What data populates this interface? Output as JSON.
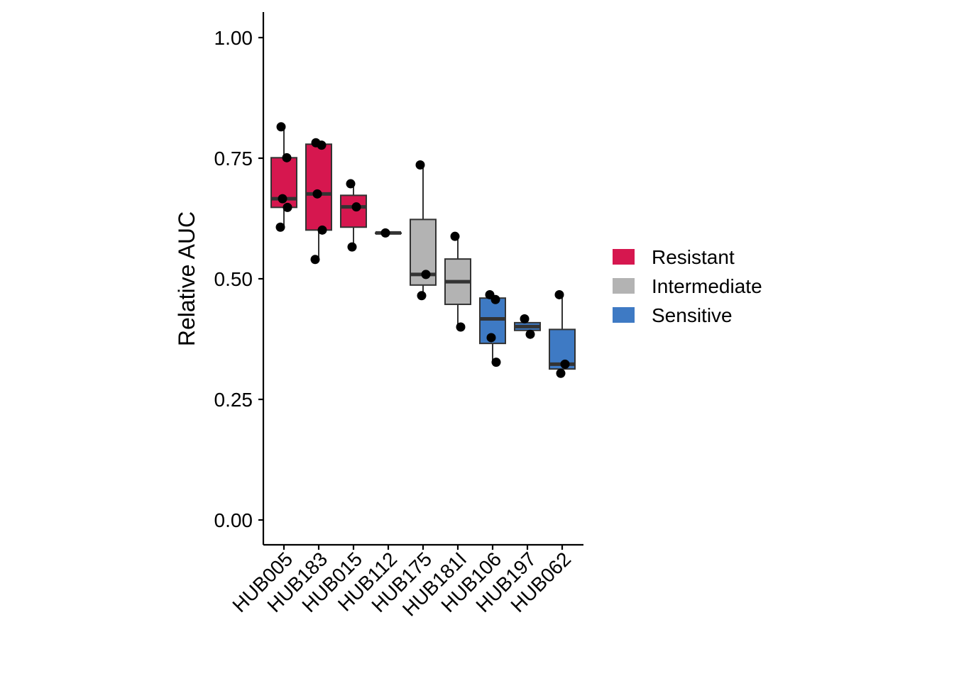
{
  "chart_data": {
    "type": "box",
    "xlabel": "",
    "ylabel": "Relative AUC",
    "ylim": [
      -0.05,
      1.05
    ],
    "yticks": [
      0.0,
      0.25,
      0.5,
      0.75,
      1.0
    ],
    "ytick_labels": [
      "0.00",
      "0.25",
      "0.50",
      "0.75",
      "1.00"
    ],
    "legend_position": "right",
    "groups": [
      {
        "name": "Resistant",
        "color": "#D6174F"
      },
      {
        "name": "Intermediate",
        "color": "#B3B3B3"
      },
      {
        "name": "Sensitive",
        "color": "#3E7AC4"
      }
    ],
    "categories": [
      "HUB005",
      "HUB183",
      "HUB015",
      "HUB112",
      "HUB175",
      "HUB181I",
      "HUB106",
      "HUB197",
      "HUB062"
    ],
    "boxes": [
      {
        "category": "HUB005",
        "group": "Resistant",
        "min": 0.607,
        "q1": 0.648,
        "median": 0.666,
        "q3": 0.751,
        "max": 0.815,
        "points": [
          0.815,
          0.751,
          0.666,
          0.648,
          0.607
        ]
      },
      {
        "category": "HUB183",
        "group": "Resistant",
        "min": 0.54,
        "q1": 0.601,
        "median": 0.676,
        "q3": 0.779,
        "max": 0.782,
        "points": [
          0.782,
          0.777,
          0.676,
          0.601,
          0.54
        ]
      },
      {
        "category": "HUB015",
        "group": "Resistant",
        "min": 0.566,
        "q1": 0.607,
        "median": 0.649,
        "q3": 0.673,
        "max": 0.697,
        "points": [
          0.697,
          0.649,
          0.566
        ]
      },
      {
        "category": "HUB112",
        "group": "Resistant",
        "min": 0.595,
        "q1": 0.595,
        "median": 0.595,
        "q3": 0.595,
        "max": 0.595,
        "points": [
          0.595
        ]
      },
      {
        "category": "HUB175",
        "group": "Intermediate",
        "min": 0.465,
        "q1": 0.487,
        "median": 0.509,
        "q3": 0.623,
        "max": 0.736,
        "points": [
          0.736,
          0.509,
          0.465
        ]
      },
      {
        "category": "HUB181I",
        "group": "Intermediate",
        "min": 0.4,
        "q1": 0.447,
        "median": 0.494,
        "q3": 0.541,
        "max": 0.588,
        "points": [
          0.588,
          0.4
        ]
      },
      {
        "category": "HUB106",
        "group": "Sensitive",
        "min": 0.327,
        "q1": 0.366,
        "median": 0.417,
        "q3": 0.46,
        "max": 0.467,
        "points": [
          0.467,
          0.457,
          0.378,
          0.327
        ]
      },
      {
        "category": "HUB197",
        "group": "Sensitive",
        "min": 0.385,
        "q1": 0.393,
        "median": 0.401,
        "q3": 0.409,
        "max": 0.417,
        "points": [
          0.417,
          0.385
        ]
      },
      {
        "category": "HUB062",
        "group": "Sensitive",
        "min": 0.304,
        "q1": 0.313,
        "median": 0.323,
        "q3": 0.395,
        "max": 0.467,
        "points": [
          0.467,
          0.323,
          0.304
        ]
      }
    ]
  }
}
